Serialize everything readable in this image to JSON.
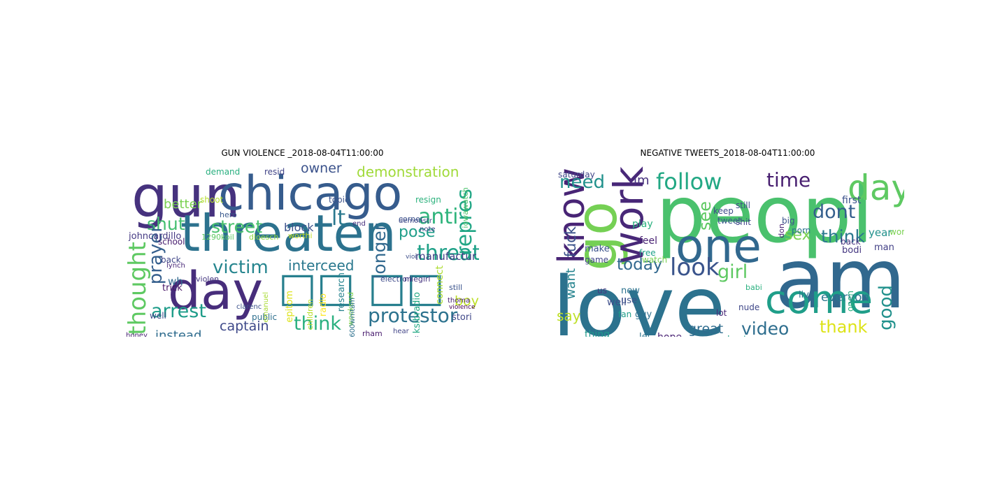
{
  "panels": [
    {
      "title": "GUN VIOLENCE _2018-08-04T11:00:00",
      "words": [
        {
          "t": "gun",
          "c": "#46327e"
        },
        {
          "t": "chicago",
          "c": "#365c8d"
        },
        {
          "t": "threaten",
          "c": "#2c728e"
        },
        {
          "t": "day",
          "c": "#472d7b"
        },
        {
          "t": "□□ □□",
          "c": "#277f8e"
        },
        {
          "t": "owner",
          "c": "#3b528b"
        },
        {
          "t": "demonstration",
          "c": "#a0da39"
        },
        {
          "t": "shut",
          "c": "#44bf70"
        },
        {
          "t": "better",
          "c": "#7ad151"
        },
        {
          "t": "street",
          "c": "#4ac16d"
        },
        {
          "t": "lt",
          "c": "#2a788e"
        },
        {
          "t": "anti",
          "c": "#2fb47c"
        },
        {
          "t": "repres",
          "c": "#21a685"
        },
        {
          "t": "victim",
          "c": "#25858e"
        },
        {
          "t": "threat",
          "c": "#1fa188"
        },
        {
          "t": "pose",
          "c": "#1f9e89"
        },
        {
          "t": "thought",
          "c": "#5ec962"
        },
        {
          "t": "prayer",
          "c": "#355f8d"
        },
        {
          "t": "interceed",
          "c": "#2a788e"
        },
        {
          "t": "arrest",
          "c": "#1e9c89"
        },
        {
          "t": "think",
          "c": "#2ab07f"
        },
        {
          "t": "protestor",
          "c": "#2c728e"
        },
        {
          "t": "captain",
          "c": "#3e4989"
        },
        {
          "t": "instead",
          "c": "#2f6c8e"
        },
        {
          "t": "longer",
          "c": "#31688e"
        },
        {
          "t": "boy",
          "c": "#bddf26"
        },
        {
          "t": "block",
          "c": "#3b518b"
        },
        {
          "t": "manufactur",
          "c": "#424086"
        },
        {
          "t": "stori",
          "c": "#3f4788"
        },
        {
          "t": "connect",
          "c": "#addc30"
        },
        {
          "t": "research",
          "c": "#26828e"
        },
        {
          "t": "demand",
          "c": "#29af7f"
        },
        {
          "t": "resid",
          "c": "#414487"
        },
        {
          "t": "resign",
          "c": "#2db27d"
        },
        {
          "t": "topic",
          "c": "#3b528b"
        },
        {
          "t": "hero",
          "c": "#38588c"
        },
        {
          "t": "shoot",
          "c": "#b5de2b"
        },
        {
          "t": "johncardillo",
          "c": "#443983"
        },
        {
          "t": "school",
          "c": "#481d6f"
        },
        {
          "t": "1290koil",
          "c": "#5ec962"
        },
        {
          "t": "dloesch",
          "c": "#93d741"
        },
        {
          "t": "worthi",
          "c": "#c2df23"
        },
        {
          "t": "back",
          "c": "#404688"
        },
        {
          "t": "lynch",
          "c": "#482878"
        },
        {
          "t": "wh",
          "c": "#31688e"
        },
        {
          "t": "violen",
          "c": "#453781"
        },
        {
          "t": "trick",
          "c": "#471365"
        },
        {
          "t": "well",
          "c": "#3e4a89"
        },
        {
          "t": "honey",
          "c": "#482173"
        },
        {
          "t": "public",
          "c": "#2e6f8e"
        },
        {
          "t": "clarenc",
          "c": "#3b518b"
        },
        {
          "t": "emanuel",
          "c": "#a8db34"
        },
        {
          "t": "children",
          "c": "#b8de29"
        },
        {
          "t": "radio",
          "c": "#fde725"
        },
        {
          "t": "epitom",
          "c": "#dde318"
        },
        {
          "t": "electron",
          "c": "#3e4a89"
        },
        {
          "t": "nliegirl",
          "c": "#463480"
        },
        {
          "t": "still",
          "c": "#3a538b"
        },
        {
          "t": "thoma",
          "c": "#482173"
        },
        {
          "t": "violence",
          "c": "#440154"
        },
        {
          "t": "ksibradio",
          "c": "#22a884"
        },
        {
          "t": "rham",
          "c": "#481c6e"
        },
        {
          "t": "aliv",
          "c": "#3e4989"
        },
        {
          "t": "wouldnt",
          "c": "#3f4788"
        },
        {
          "t": "hear",
          "c": "#414487"
        },
        {
          "t": "weekend",
          "c": "#7fd34e"
        },
        {
          "t": "600wmtam",
          "c": "#2d708e"
        },
        {
          "t": "demonstr",
          "c": "#3f4788"
        },
        {
          "t": "end",
          "c": "#46307e"
        },
        {
          "t": "corner",
          "c": "#3b518b"
        },
        {
          "t": "note",
          "c": "#404588"
        },
        {
          "t": "iowawatch",
          "c": "#4ec36b"
        },
        {
          "t": "vioi",
          "c": "#3d4e8a"
        },
        {
          "t": "kitchenme",
          "c": "#471164"
        },
        {
          "t": "",
          "c": "#277f8e"
        }
      ]
    },
    {
      "title": "NEGATIVE TWEETS_2018-08-04T11:00:00",
      "words": [
        {
          "t": "peopl",
          "c": "#4ac16d"
        },
        {
          "t": "amp",
          "c": "#31688e"
        },
        {
          "t": "love",
          "c": "#2c728e"
        },
        {
          "t": "one",
          "c": "#31688e"
        },
        {
          "t": "go",
          "c": "#75d054"
        },
        {
          "t": "work",
          "c": "#482878"
        },
        {
          "t": "know",
          "c": "#482475"
        },
        {
          "t": "come",
          "c": "#1f9e89"
        },
        {
          "t": "day",
          "c": "#5ec962"
        },
        {
          "t": "follow",
          "c": "#22a884"
        },
        {
          "t": "look",
          "c": "#3a548c"
        },
        {
          "t": "time",
          "c": "#481f70"
        },
        {
          "t": "dont",
          "c": "#355f8d"
        },
        {
          "t": "think",
          "c": "#2a788e"
        },
        {
          "t": "need",
          "c": "#21918c"
        },
        {
          "t": "fuck",
          "c": "#3b528b"
        },
        {
          "t": "girl",
          "c": "#5ec962"
        },
        {
          "t": "today",
          "c": "#31688e"
        },
        {
          "t": "sex",
          "c": "#7ad151"
        },
        {
          "t": "see",
          "c": "#5ec962"
        },
        {
          "t": "thank",
          "c": "#dde318"
        },
        {
          "t": "video",
          "c": "#2e6e8e"
        },
        {
          "t": "good",
          "c": "#21918c"
        },
        {
          "t": "want",
          "c": "#25838e"
        },
        {
          "t": "say",
          "c": "#bddf26"
        },
        {
          "t": "great",
          "c": "#2f6c8e"
        },
        {
          "t": "everyon",
          "c": "#2a768e"
        },
        {
          "t": "hope",
          "c": "#482173"
        },
        {
          "t": "im",
          "c": "#46307e"
        },
        {
          "t": "first",
          "c": "#3b528b"
        },
        {
          "t": "year",
          "c": "#21918c"
        },
        {
          "t": "man",
          "c": "#424086"
        },
        {
          "t": "thing",
          "c": "#1f988b"
        },
        {
          "t": "make",
          "c": "#3b528b"
        },
        {
          "t": "game",
          "c": "#404688"
        },
        {
          "t": "play",
          "c": "#2ab07f"
        },
        {
          "t": "feel",
          "c": "#482173"
        },
        {
          "t": "free",
          "c": "#1fa188"
        },
        {
          "t": "watch",
          "c": "#7ad151"
        },
        {
          "t": "saturday",
          "c": "#404688"
        },
        {
          "t": "new",
          "c": "#2c728e"
        },
        {
          "t": "use",
          "c": "#3b528b"
        },
        {
          "t": "fan",
          "c": "#1f9e89"
        },
        {
          "t": "us",
          "c": "#453781"
        },
        {
          "t": "well",
          "c": "#3d4e8a"
        },
        {
          "t": "guy",
          "c": "#2d708e"
        },
        {
          "t": "let",
          "c": "#2c738e"
        },
        {
          "t": "live",
          "c": "#2e6f8e"
        },
        {
          "t": "babi",
          "c": "#2ab07f"
        },
        {
          "t": "nude",
          "c": "#3f4788"
        },
        {
          "t": "lot",
          "c": "#482878"
        },
        {
          "t": "best",
          "c": "#1f9e89"
        },
        {
          "t": "big",
          "c": "#3b528b"
        },
        {
          "t": "porn",
          "c": "#2c728e"
        },
        {
          "t": "shit",
          "c": "#404688"
        },
        {
          "t": "back",
          "c": "#46327e"
        },
        {
          "t": "bodi",
          "c": "#453781"
        },
        {
          "t": "keep",
          "c": "#3e4a89"
        },
        {
          "t": "tweet",
          "c": "#3a548c"
        },
        {
          "t": "still",
          "c": "#3d4e8a"
        },
        {
          "t": "world",
          "c": "#7ad151"
        },
        {
          "t": "open",
          "c": "#29af7f"
        },
        {
          "t": "don",
          "c": "#482173"
        },
        {
          "t": "bar",
          "c": "#46307e"
        }
      ]
    }
  ]
}
